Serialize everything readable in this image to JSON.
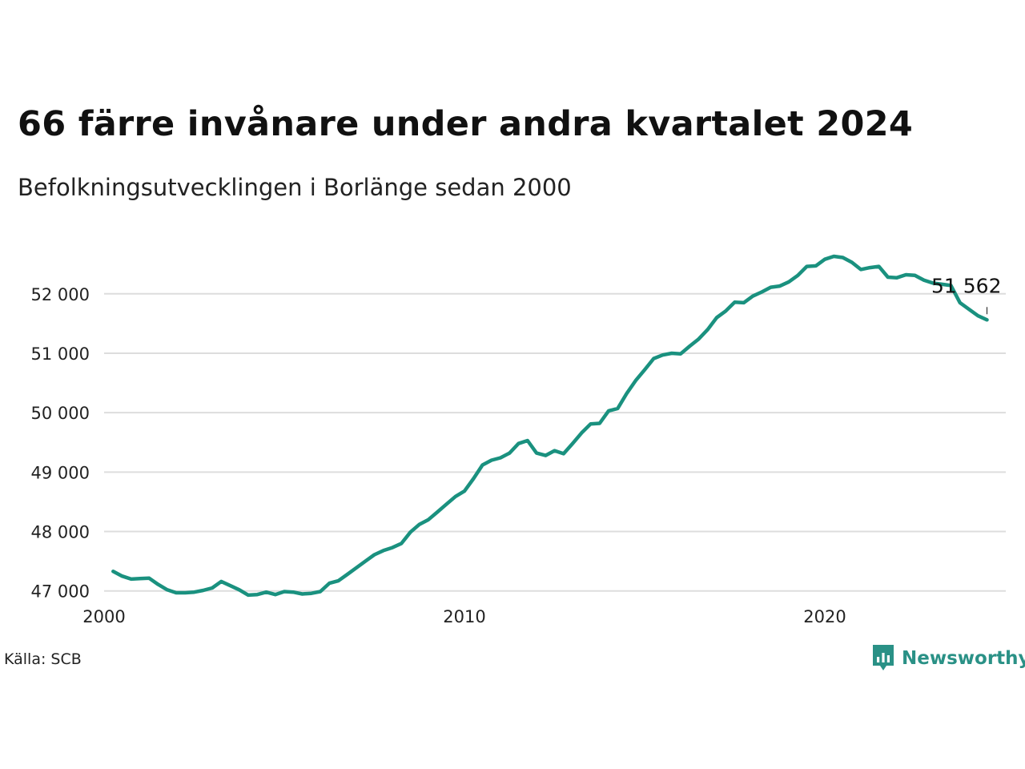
{
  "title": "66 färre invånare under andra kvartalet 2024",
  "subtitle": "Befolkningsutvecklingen i Borlänge sedan 2000",
  "source": "Källa: SCB",
  "brand": {
    "name": "Newsworthy",
    "logo_icon": "newsworthy-chart-bubble-icon",
    "color": "#2a9186"
  },
  "colors": {
    "line": "#1a917f",
    "grid": "#dddddd"
  },
  "chart_data": {
    "type": "line",
    "title": "66 färre invånare under andra kvartalet 2024",
    "subtitle": "Befolkningsutvecklingen i Borlänge sedan 2000",
    "xlim": [
      2000,
      2025
    ],
    "ylim": [
      46700,
      52900
    ],
    "x_ticks": [
      2000,
      2010,
      2020
    ],
    "x_tick_labels": [
      "2000",
      "2010",
      "2020"
    ],
    "y_ticks": [
      47000,
      48000,
      49000,
      50000,
      51000,
      52000
    ],
    "y_tick_labels": [
      "47 000",
      "48 000",
      "49 000",
      "50 000",
      "51 000",
      "52 000"
    ],
    "grid": true,
    "end_label": "51 562",
    "series": [
      {
        "x": [
          2000.25,
          2000.5,
          2000.75,
          2001,
          2001.25,
          2001.5,
          2001.75,
          2002,
          2002.25,
          2002.5,
          2002.75,
          2003,
          2003.25,
          2003.5,
          2003.75,
          2004,
          2004.25,
          2004.5,
          2004.75,
          2005,
          2005.25,
          2005.5,
          2005.75,
          2006,
          2006.25,
          2006.5,
          2006.75,
          2007,
          2007.25,
          2007.5,
          2007.75,
          2008,
          2008.25,
          2008.5,
          2008.75,
          2009,
          2009.25,
          2009.5,
          2009.75,
          2010,
          2010.25,
          2010.5,
          2010.75,
          2011,
          2011.25,
          2011.5,
          2011.75,
          2012,
          2012.25,
          2012.5,
          2012.75,
          2013,
          2013.25,
          2013.5,
          2013.75,
          2014,
          2014.25,
          2014.5,
          2014.75,
          2015,
          2015.25,
          2015.5,
          2015.75,
          2016,
          2016.25,
          2016.5,
          2016.75,
          2017,
          2017.25,
          2017.5,
          2017.75,
          2018,
          2018.25,
          2018.5,
          2018.75,
          2019,
          2019.25,
          2019.5,
          2019.75,
          2020,
          2020.25,
          2020.5,
          2020.75,
          2021,
          2021.25,
          2021.5,
          2021.75,
          2022,
          2022.25,
          2022.5,
          2022.75,
          2023,
          2023.25,
          2023.5,
          2023.75,
          2024,
          2024.25,
          2024.5
        ],
        "y": [
          47330,
          47250,
          47200,
          47210,
          47215,
          47110,
          47020,
          46970,
          46970,
          46980,
          47010,
          47050,
          47160,
          47090,
          47020,
          46930,
          46940,
          46980,
          46940,
          46990,
          46980,
          46950,
          46960,
          46990,
          47130,
          47170,
          47280,
          47390,
          47500,
          47610,
          47680,
          47730,
          47800,
          47990,
          48120,
          48200,
          48330,
          48460,
          48590,
          48680,
          48890,
          49120,
          49200,
          49240,
          49320,
          49480,
          49530,
          49320,
          49280,
          49360,
          49310,
          49480,
          49660,
          49810,
          49820,
          50030,
          50070,
          50320,
          50540,
          50720,
          50910,
          50970,
          51000,
          50990,
          51120,
          51240,
          51400,
          51600,
          51710,
          51860,
          51850,
          51960,
          52030,
          52110,
          52130,
          52200,
          52310,
          52460,
          52470,
          52580,
          52630,
          52610,
          52530,
          52410,
          52440,
          52460,
          52280,
          52270,
          52320,
          52310,
          52230,
          52180,
          52160,
          52140,
          51850,
          51740,
          51630,
          51562
        ]
      }
    ]
  }
}
